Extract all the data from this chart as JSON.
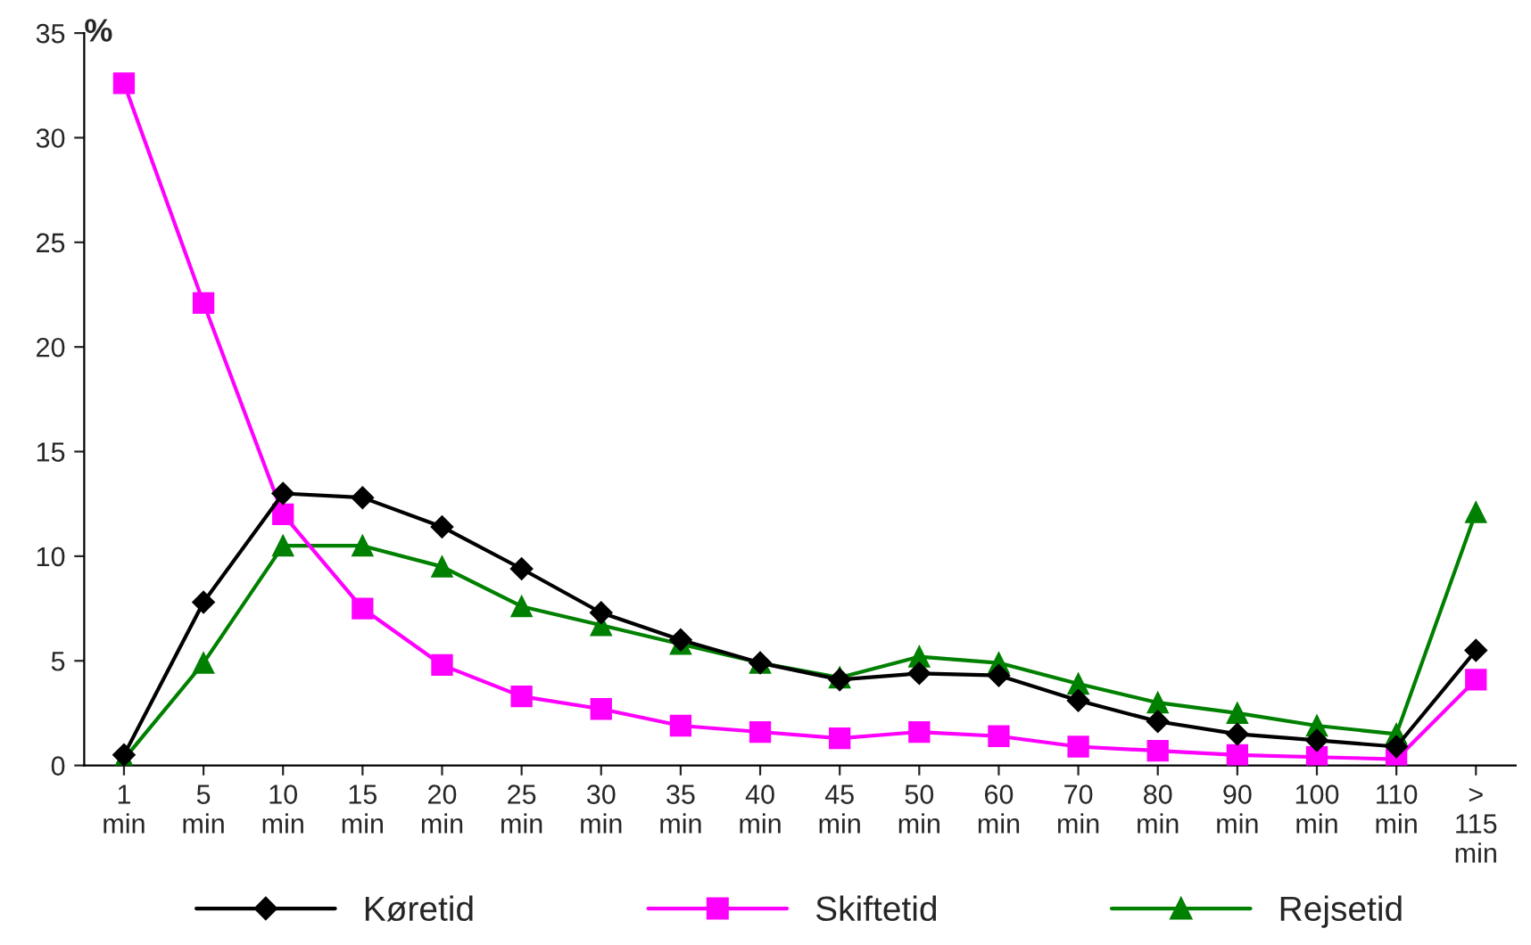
{
  "chart_data": {
    "type": "line",
    "ylabel": "%",
    "categories": [
      "1\nmin",
      "5\nmin",
      "10\nmin",
      "15\nmin",
      "20\nmin",
      "25\nmin",
      "30\nmin",
      "35\nmin",
      "40\nmin",
      "45\nmin",
      "50\nmin",
      "60\nmin",
      "70\nmin",
      "80\nmin",
      "90\nmin",
      "100\nmin",
      "110\nmin",
      ">\n115\nmin"
    ],
    "series": [
      {
        "name": "Køretid",
        "color": "#000000",
        "marker": "diamond",
        "values": [
          0.5,
          7.8,
          13.0,
          12.8,
          11.4,
          9.4,
          7.3,
          6.0,
          4.9,
          4.1,
          4.4,
          4.3,
          3.1,
          2.1,
          1.5,
          1.2,
          0.9,
          5.5
        ]
      },
      {
        "name": "Skiftetid",
        "color": "#ff00ff",
        "marker": "square",
        "values": [
          32.6,
          22.1,
          12.0,
          7.5,
          4.8,
          3.3,
          2.7,
          1.9,
          1.6,
          1.3,
          1.6,
          1.4,
          0.9,
          0.7,
          0.5,
          0.4,
          0.3,
          4.1
        ]
      },
      {
        "name": "Rejsetid",
        "color": "#008000",
        "marker": "triangle",
        "values": [
          0.3,
          4.9,
          10.5,
          10.5,
          9.5,
          7.6,
          6.7,
          5.8,
          4.9,
          4.2,
          5.2,
          4.9,
          3.9,
          3.0,
          2.5,
          1.9,
          1.5,
          12.1
        ]
      }
    ],
    "ylim": [
      0,
      35
    ],
    "yticks": [
      0,
      5,
      10,
      15,
      20,
      25,
      30,
      35
    ],
    "grid": false,
    "legend": "bottom",
    "line_style": "solid"
  }
}
